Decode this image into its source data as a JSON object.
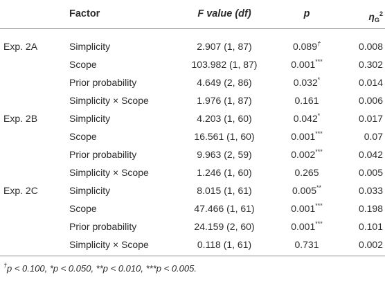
{
  "header": {
    "factor": "Factor",
    "f_value": "F value",
    "f_value_df": "(df)",
    "p": "p",
    "eta_symbol": "η",
    "eta_sub": "G",
    "eta_sup": "2"
  },
  "rows": [
    {
      "exp": "Exp. 2A",
      "factor": "Simplicity",
      "f": "2.907 (1, 87)",
      "p": "0.089",
      "sig": "†",
      "eta": "0.008"
    },
    {
      "exp": "",
      "factor": "Scope",
      "f": "103.982 (1, 87)",
      "p": "0.001",
      "sig": "***",
      "eta": "0.302"
    },
    {
      "exp": "",
      "factor": "Prior probability",
      "f": "4.649 (2, 86)",
      "p": "0.032",
      "sig": "*",
      "eta": "0.014"
    },
    {
      "exp": "",
      "factor": "Simplicity × Scope",
      "f": "1.976 (1, 87)",
      "p": "0.161",
      "sig": "",
      "eta": "0.006"
    },
    {
      "exp": "Exp. 2B",
      "factor": "Simplicity",
      "f": "4.203 (1, 60)",
      "p": "0.042",
      "sig": "*",
      "eta": "0.017"
    },
    {
      "exp": "",
      "factor": "Scope",
      "f": "16.561 (1, 60)",
      "p": "0.001",
      "sig": "***",
      "eta": "0.07"
    },
    {
      "exp": "",
      "factor": "Prior probability",
      "f": "9.963 (2, 59)",
      "p": "0.002",
      "sig": "***",
      "eta": "0.042"
    },
    {
      "exp": "",
      "factor": "Simplicity × Scope",
      "f": "1.246 (1, 60)",
      "p": "0.265",
      "sig": "",
      "eta": "0.005"
    },
    {
      "exp": "Exp. 2C",
      "factor": "Simplicity",
      "f": "8.015 (1, 61)",
      "p": "0.005",
      "sig": "**",
      "eta": "0.033"
    },
    {
      "exp": "",
      "factor": "Scope",
      "f": "47.466 (1, 61)",
      "p": "0.001",
      "sig": "***",
      "eta": "0.198"
    },
    {
      "exp": "",
      "factor": "Prior probability",
      "f": "24.159 (2, 60)",
      "p": "0.001",
      "sig": "***",
      "eta": "0.101"
    },
    {
      "exp": "",
      "factor": "Simplicity × Scope",
      "f": "0.118 (1, 61)",
      "p": "0.731",
      "sig": "",
      "eta": "0.002"
    }
  ],
  "footnote": {
    "dagger": "†",
    "text": "p < 0.100, *p < 0.050, **p < 0.010, ***p < 0.005."
  },
  "colors": {
    "text": "#2b2b2b",
    "rule": "#8c8c8c"
  }
}
